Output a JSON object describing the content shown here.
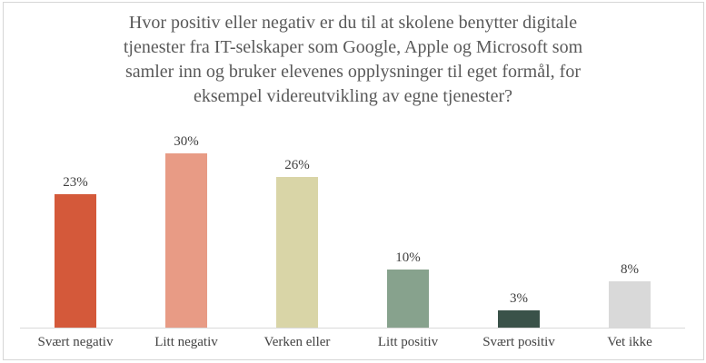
{
  "frame": {
    "background_color": "#ffffff",
    "border_color": "#d6d6d6"
  },
  "title": {
    "text": "Hvor positiv eller negativ er du til at skolene benytter digitale\ntjenester fra IT-selskaper som Google, Apple og Microsoft som\nsamler inn og bruker elevenes opplysninger til eget formål, for\neksempel videreutvikling av egne tjenester?",
    "color": "#595959"
  },
  "chart_data": {
    "type": "bar",
    "title": "Hvor positiv eller negativ er du til at skolene benytter digitale tjenester fra IT-selskaper som Google, Apple og Microsoft som samler inn og bruker elevenes opplysninger til eget formål, for eksempel videreutvikling av egne tjenester?",
    "categories": [
      "Svært negativ",
      "Litt negativ",
      "Verken eller",
      "Litt positiv",
      "Svært positiv",
      "Vet ikke"
    ],
    "values": [
      23,
      30,
      26,
      10,
      3,
      8
    ],
    "data_labels": [
      "23%",
      "30%",
      "26%",
      "10%",
      "3%",
      "8%"
    ],
    "bar_colors": [
      "#d4593a",
      "#e89b85",
      "#d9d5a7",
      "#87a28d",
      "#3a5249",
      "#d9d9d9"
    ],
    "xlabel": "",
    "ylabel": "",
    "ylim": [
      0,
      31
    ],
    "grid": false,
    "legend": "none",
    "axis_color": "#d9d9d9",
    "label_color": "#404040",
    "unit": "%"
  }
}
